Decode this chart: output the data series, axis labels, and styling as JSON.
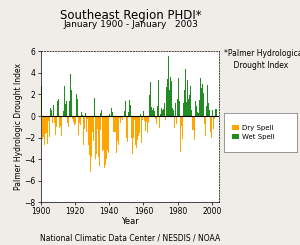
{
  "title": "Southeast Region PHDI*",
  "subtitle": "January 1900 - January   2003",
  "xlabel": "Year",
  "ylabel": "Palmer Hydrologic Drought Index",
  "footer": "National Climatic Data Center / NESDIS / NOAA",
  "annotation": "*Palmer Hydrological\n    Drought Index",
  "legend_labels": [
    "Dry Spell",
    "Wet Spell"
  ],
  "dry_color": "#FFA500",
  "wet_color": "#228B22",
  "ylim": [
    -8.0,
    6.0
  ],
  "yticks": [
    -8.0,
    -6.0,
    -4.0,
    -2.0,
    0.0,
    2.0,
    4.0,
    6.0
  ],
  "xlim": [
    1900,
    2004
  ],
  "xticks": [
    1900,
    1920,
    1940,
    1960,
    1980,
    2000
  ],
  "start_year": 1900,
  "n_months": 1237,
  "bg_color": "#f0ede8",
  "plot_bg": "#ffffff",
  "title_fontsize": 8.5,
  "subtitle_fontsize": 6.5,
  "axis_label_fontsize": 6,
  "ylabel_fontsize": 5.5,
  "tick_fontsize": 5.5,
  "footer_fontsize": 5.5,
  "annot_fontsize": 5.5
}
